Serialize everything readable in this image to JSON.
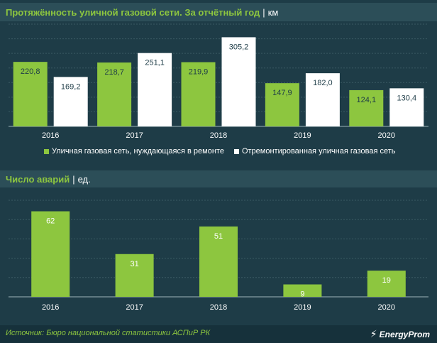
{
  "header1": {
    "title": "Протяжённость уличной газовой сети. За отчётный год",
    "sep": "|",
    "unit": "км"
  },
  "header2": {
    "title": "Число аварий",
    "sep": "|",
    "unit": "ед."
  },
  "legend": [
    {
      "label": "Уличная газовая сеть, нуждающаяся в ремонте",
      "color": "#8dc63f"
    },
    {
      "label": "Отремонтированная уличная газовая сеть",
      "color": "#ffffff"
    }
  ],
  "footer": {
    "source": "Источник: Бюро национальной статистики АСПиР РК",
    "brand": "EnergyProm",
    "logo_icon": "energyprom-logo-icon"
  },
  "colors": {
    "green": "#8dc63f",
    "white": "#ffffff",
    "background": "#1e3c47",
    "header": "#2c4e58"
  },
  "chart_data": [
    {
      "type": "bar",
      "title": "Протяжённость уличной газовой сети. За отчётный год",
      "unit": "км",
      "categories": [
        "2016",
        "2017",
        "2018",
        "2019",
        "2020"
      ],
      "series": [
        {
          "name": "Уличная газовая сеть, нуждающаяся в ремонте",
          "values": [
            220.8,
            218.7,
            219.9,
            147.9,
            124.1
          ],
          "labels": [
            "220,8",
            "218,7",
            "219,9",
            "147,9",
            "124,1"
          ],
          "color": "#8dc63f"
        },
        {
          "name": "Отремонтированная уличная газовая сеть",
          "values": [
            169.2,
            251.1,
            305.2,
            182.0,
            130.4
          ],
          "labels": [
            "169,2",
            "251,1",
            "305,2",
            "182,0",
            "130,4"
          ],
          "color": "#ffffff"
        }
      ],
      "ylim": [
        0,
        350
      ],
      "grid": true,
      "legend": "bottom"
    },
    {
      "type": "bar",
      "title": "Число аварий",
      "unit": "ед.",
      "categories": [
        "2016",
        "2017",
        "2018",
        "2019",
        "2020"
      ],
      "series": [
        {
          "values": [
            62,
            31,
            51,
            9,
            19
          ],
          "labels": [
            "62",
            "31",
            "51",
            "9",
            "19"
          ],
          "color": "#8dc63f"
        }
      ],
      "ylim": [
        0,
        70
      ],
      "grid": true
    }
  ]
}
